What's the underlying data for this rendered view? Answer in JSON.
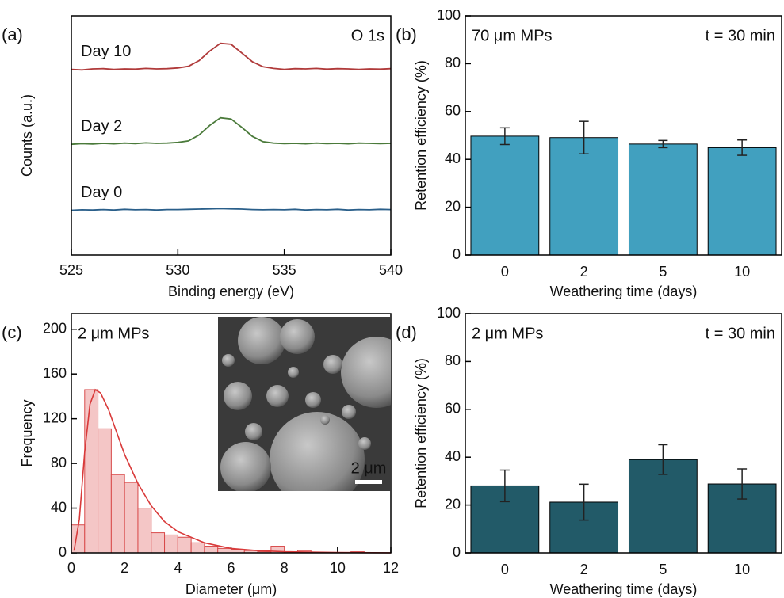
{
  "chart_data": [
    {
      "type": "line",
      "panel_label": "(a)",
      "title_right": "O 1s",
      "xlabel": "Binding energy (eV)",
      "ylabel": "Counts (a.u.)",
      "x": [
        525,
        525.5,
        526,
        526.5,
        527,
        527.5,
        528,
        528.5,
        529,
        529.5,
        530,
        530.5,
        531,
        531.5,
        532,
        532.5,
        533,
        533.5,
        534,
        534.5,
        535,
        535.5,
        536,
        536.5,
        537,
        537.5,
        538,
        538.5,
        539,
        539.5,
        540
      ],
      "xlim": [
        525,
        540
      ],
      "xticks": [
        525,
        530,
        535,
        540
      ],
      "ylim": [
        0,
        100
      ],
      "series": [
        {
          "name": "Day 10",
          "color": "#b03a3a",
          "values": [
            77.6,
            77.4,
            77.8,
            77.9,
            77.6,
            77.8,
            77.7,
            78.0,
            77.8,
            77.9,
            78.2,
            78.9,
            81.3,
            85.3,
            88.5,
            88.1,
            84.5,
            80.8,
            78.7,
            78.0,
            77.6,
            77.9,
            77.8,
            78.0,
            77.7,
            77.9,
            77.8,
            77.6,
            77.8,
            77.7,
            77.9
          ]
        },
        {
          "name": "Day 2",
          "color": "#4a7a3a",
          "values": [
            46.3,
            46.6,
            46.4,
            46.7,
            46.5,
            46.8,
            46.6,
            46.9,
            46.7,
            46.8,
            47.1,
            47.7,
            50.2,
            54.2,
            57.4,
            56.9,
            53.4,
            49.6,
            47.4,
            46.8,
            46.6,
            46.7,
            46.5,
            46.8,
            46.6,
            46.7,
            46.5,
            46.8,
            46.7,
            46.6,
            46.7
          ]
        },
        {
          "name": "Day 0",
          "color": "#2a5f8a",
          "values": [
            18.7,
            18.9,
            18.8,
            19.0,
            18.8,
            19.1,
            18.9,
            19.0,
            18.8,
            19.0,
            19.0,
            19.1,
            19.2,
            19.3,
            19.4,
            19.3,
            19.2,
            19.0,
            18.9,
            19.0,
            18.9,
            19.1,
            18.8,
            19.0,
            18.9,
            19.1,
            18.8,
            19.0,
            18.9,
            19.1,
            19.0
          ]
        }
      ]
    },
    {
      "type": "bar",
      "panel_label": "(b)",
      "title_left": "70 μm MPs",
      "title_right": "t = 30 min",
      "xlabel": "Weathering time (days)",
      "ylabel": "Retention efficiency (%)",
      "categories": [
        "0",
        "2",
        "5",
        "10"
      ],
      "values": [
        49.7,
        49.1,
        46.4,
        44.9
      ],
      "errors": [
        3.5,
        6.8,
        1.5,
        3.2
      ],
      "color": "#41a0bf",
      "ylim": [
        0,
        100
      ],
      "yticks": [
        0,
        20,
        40,
        60,
        80,
        100
      ]
    },
    {
      "type": "histogram",
      "panel_label": "(c)",
      "title_left": "2 μm MPs",
      "xlabel": "Diameter (μm)",
      "ylabel": "Frequency",
      "inset_scale_label": "2 μm",
      "bins": [
        0,
        0.5,
        1,
        1.5,
        2,
        2.5,
        3,
        3.5,
        4,
        4.5,
        5,
        5.5,
        6,
        6.5,
        7,
        7.5,
        8,
        8.5,
        9,
        9.5,
        10,
        10.5,
        11
      ],
      "values": [
        25,
        146,
        111,
        70,
        63,
        40,
        18,
        16,
        14,
        9,
        6,
        4,
        3,
        2,
        1,
        6,
        1,
        2,
        0,
        0,
        0,
        1
      ],
      "color": "#f4c6c6",
      "edge_color": "#d84a4a",
      "fit": {
        "color": "#d93a3a",
        "x": [
          0.1,
          0.3,
          0.5,
          0.7,
          0.9,
          1.1,
          1.4,
          1.7,
          2.0,
          2.5,
          3.0,
          3.5,
          4.0,
          5.0,
          6.0,
          7.0,
          8.0,
          10.0,
          12.0
        ],
        "values": [
          2,
          30,
          90,
          133,
          146,
          143,
          128,
          108,
          88,
          62,
          42,
          28,
          19,
          9,
          4,
          2,
          1,
          0.3,
          0.1
        ]
      },
      "xlim": [
        0,
        12
      ],
      "xticks": [
        0,
        2,
        4,
        6,
        8,
        10,
        12
      ],
      "ylim": [
        0,
        214
      ],
      "yticks": [
        0,
        40,
        80,
        120,
        160,
        200
      ]
    },
    {
      "type": "bar",
      "panel_label": "(d)",
      "title_left": "2 μm MPs",
      "title_right": "t = 30 min",
      "xlabel": "Weathering time (days)",
      "ylabel": "Retention efficiency (%)",
      "categories": [
        "0",
        "2",
        "5",
        "10"
      ],
      "values": [
        28.0,
        21.2,
        39.0,
        28.8
      ],
      "errors": [
        6.6,
        7.5,
        6.2,
        6.3
      ],
      "color": "#225a68",
      "ylim": [
        0,
        100
      ],
      "yticks": [
        0,
        20,
        40,
        60,
        80,
        100
      ]
    }
  ]
}
